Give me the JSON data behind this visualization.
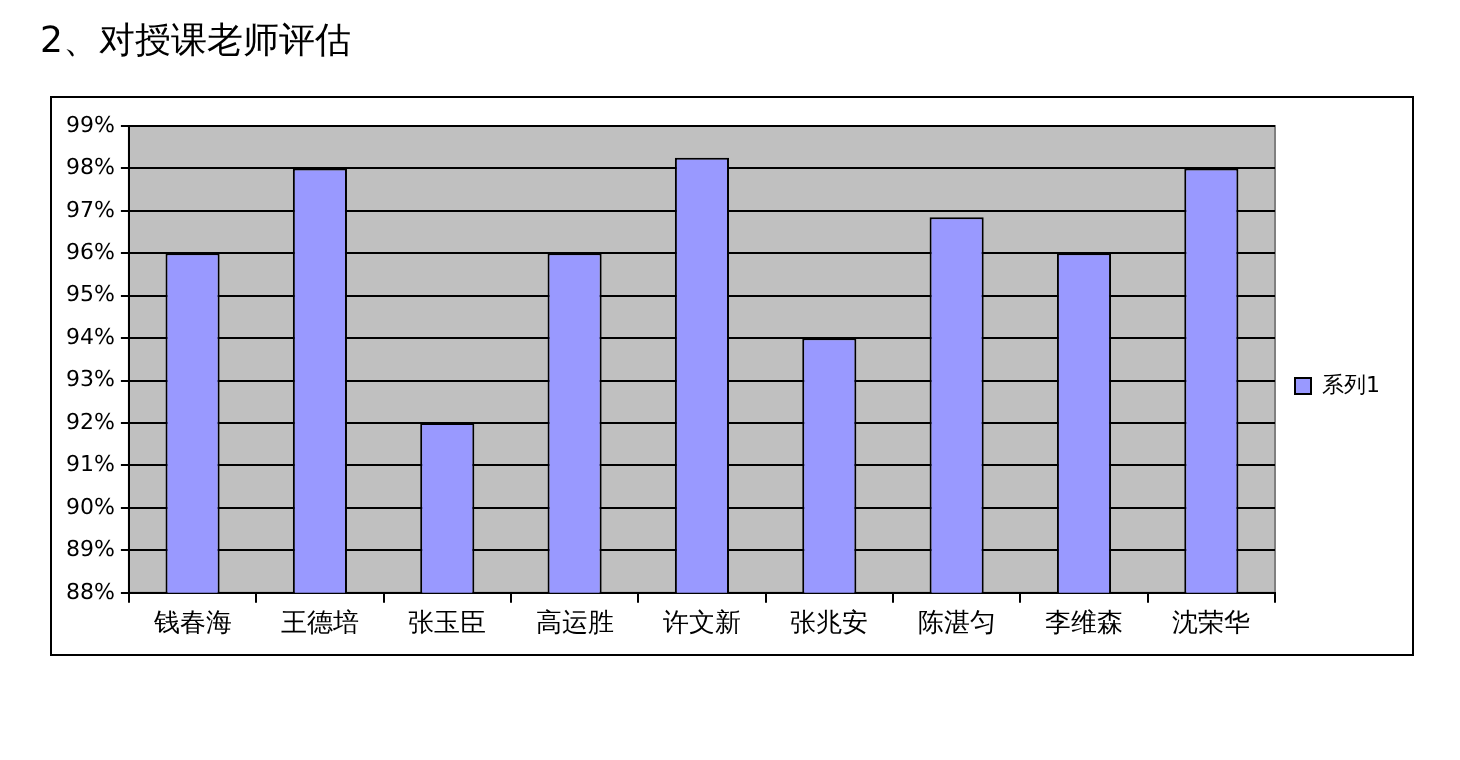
{
  "chart_data": {
    "type": "bar",
    "title": "2、对授课老师评估",
    "categories": [
      "钱春海",
      "王德培",
      "张玉臣",
      "高运胜",
      "许文新",
      "张兆安",
      "陈湛匀",
      "李维森",
      "沈荣华"
    ],
    "series": [
      {
        "name": "系列1",
        "color": "#9999ff",
        "values": [
          96,
          98,
          92,
          96,
          98.25,
          94,
          96.85,
          96,
          98
        ]
      }
    ],
    "ylim": [
      88,
      99
    ],
    "yticks": [
      {
        "value": 88,
        "label": "88%"
      },
      {
        "value": 89,
        "label": "89%"
      },
      {
        "value": 90,
        "label": "90%"
      },
      {
        "value": 91,
        "label": "91%"
      },
      {
        "value": 92,
        "label": "92%"
      },
      {
        "value": 93,
        "label": "93%"
      },
      {
        "value": 94,
        "label": "94%"
      },
      {
        "value": 95,
        "label": "95%"
      },
      {
        "value": 96,
        "label": "96%"
      },
      {
        "value": 97,
        "label": "97%"
      },
      {
        "value": 98,
        "label": "98%"
      },
      {
        "value": 99,
        "label": "99%"
      }
    ],
    "grid": "y",
    "legend": "right"
  }
}
